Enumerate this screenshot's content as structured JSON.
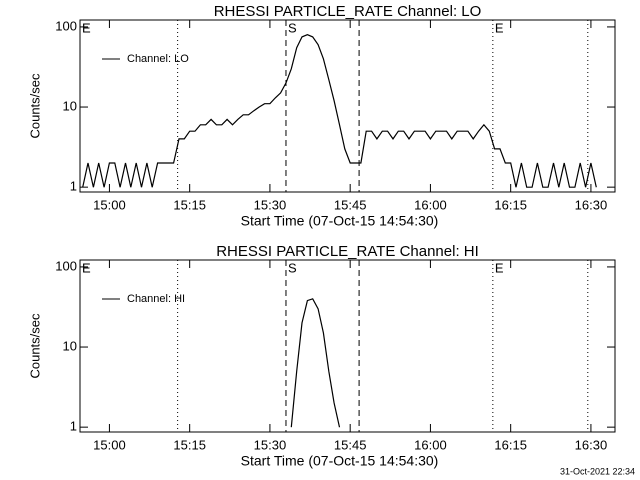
{
  "chart_data": [
    {
      "type": "line",
      "title": "RHESSI PARTICLE_RATE Channel: LO",
      "xlabel": "Start Time (07-Oct-15 14:54:30)",
      "ylabel": "Counts/sec",
      "xlim": [
        "14:54:30",
        "16:34:30"
      ],
      "xticks": [
        "15:00",
        "15:15",
        "15:30",
        "15:45",
        "16:00",
        "16:15",
        "16:30"
      ],
      "ylim": [
        0.87,
        122
      ],
      "yticks": [
        1,
        10,
        100
      ],
      "yscale": "log",
      "legend": "upper left",
      "x": [
        "14:55",
        "14:56",
        "14:57",
        "14:58",
        "14:59",
        "15:00",
        "15:01",
        "15:02",
        "15:03",
        "15:04",
        "15:05",
        "15:06",
        "15:07",
        "15:08",
        "15:09",
        "15:10",
        "15:11",
        "15:12",
        "15:13",
        "15:14",
        "15:15",
        "15:16",
        "15:17",
        "15:18",
        "15:19",
        "15:20",
        "15:21",
        "15:22",
        "15:23",
        "15:24",
        "15:25",
        "15:26",
        "15:27",
        "15:28",
        "15:29",
        "15:30",
        "15:31",
        "15:32",
        "15:33",
        "15:34",
        "15:35",
        "15:36",
        "15:37",
        "15:38",
        "15:39",
        "15:40",
        "15:41",
        "15:42",
        "15:43",
        "15:44",
        "15:45",
        "15:46",
        "15:47",
        "15:48",
        "15:49",
        "15:50",
        "15:51",
        "15:52",
        "15:53",
        "15:54",
        "15:55",
        "15:56",
        "15:57",
        "15:58",
        "15:59",
        "16:00",
        "16:01",
        "16:02",
        "16:03",
        "16:04",
        "16:05",
        "16:06",
        "16:07",
        "16:08",
        "16:09",
        "16:10",
        "16:11",
        "16:12",
        "16:13",
        "16:14",
        "16:15",
        "16:16",
        "16:17",
        "16:18",
        "16:19",
        "16:20",
        "16:21",
        "16:22",
        "16:23",
        "16:24",
        "16:25",
        "16:26",
        "16:27",
        "16:28",
        "16:29",
        "16:30",
        "16:31"
      ],
      "series": [
        {
          "name": "Channel: LO",
          "color": "#000000",
          "values": [
            1,
            2,
            1,
            2,
            1,
            2,
            2,
            1,
            2,
            1,
            2,
            1,
            2,
            1,
            2,
            2,
            2,
            2,
            4,
            4,
            5,
            5,
            6,
            6,
            7,
            6,
            6,
            7,
            6,
            7,
            8,
            8,
            9,
            10,
            11,
            11,
            13,
            15,
            20,
            30,
            55,
            75,
            80,
            75,
            60,
            40,
            22,
            12,
            6,
            3,
            2,
            2,
            2,
            5,
            5,
            4,
            5,
            5,
            4,
            5,
            5,
            4,
            5,
            5,
            5,
            4,
            5,
            5,
            5,
            4,
            5,
            5,
            5,
            4,
            5,
            6,
            5,
            3,
            3,
            2,
            2,
            1,
            2,
            1,
            1,
            2,
            1,
            1,
            2,
            1,
            2,
            1,
            1,
            2,
            1,
            2,
            1
          ]
        }
      ],
      "markers": [
        {
          "x": "15:12:45",
          "style": "dotted"
        },
        {
          "x": "15:33:00",
          "style": "dashed"
        },
        {
          "x": "15:46:40",
          "style": "dashed"
        },
        {
          "x": "16:11:40",
          "style": "dotted"
        },
        {
          "x": "16:29:25",
          "style": "dotted"
        }
      ],
      "annotations": [
        {
          "text": "E",
          "x": "14:54:30"
        },
        {
          "text": "S",
          "x": "15:33:00"
        },
        {
          "text": "E",
          "x": "16:11:40"
        }
      ]
    },
    {
      "type": "line",
      "title": "RHESSI PARTICLE_RATE Channel: HI",
      "xlabel": "Start Time (07-Oct-15 14:54:30)",
      "ylabel": "Counts/sec",
      "xlim": [
        "14:54:30",
        "16:34:30"
      ],
      "xticks": [
        "15:00",
        "15:15",
        "15:30",
        "15:45",
        "16:00",
        "16:15",
        "16:30"
      ],
      "ylim": [
        0.87,
        122
      ],
      "yticks": [
        1,
        10,
        100
      ],
      "yscale": "log",
      "legend": "upper left",
      "x": [
        "15:34",
        "15:35",
        "15:36",
        "15:37",
        "15:38",
        "15:39",
        "15:40",
        "15:41",
        "15:42",
        "15:43"
      ],
      "series": [
        {
          "name": "Channel: HI",
          "color": "#000000",
          "values": [
            1,
            5,
            20,
            38,
            40,
            30,
            15,
            5,
            2,
            1
          ]
        }
      ],
      "markers": [
        {
          "x": "15:12:45",
          "style": "dotted"
        },
        {
          "x": "15:33:00",
          "style": "dashed"
        },
        {
          "x": "15:46:40",
          "style": "dashed"
        },
        {
          "x": "16:11:40",
          "style": "dotted"
        },
        {
          "x": "16:29:25",
          "style": "dotted"
        }
      ],
      "annotations": [
        {
          "text": "E",
          "x": "14:54:30"
        },
        {
          "text": "S",
          "x": "15:33:00"
        },
        {
          "text": "E",
          "x": "16:11:40"
        }
      ]
    }
  ],
  "footer": "31-Oct-2021 22:34"
}
